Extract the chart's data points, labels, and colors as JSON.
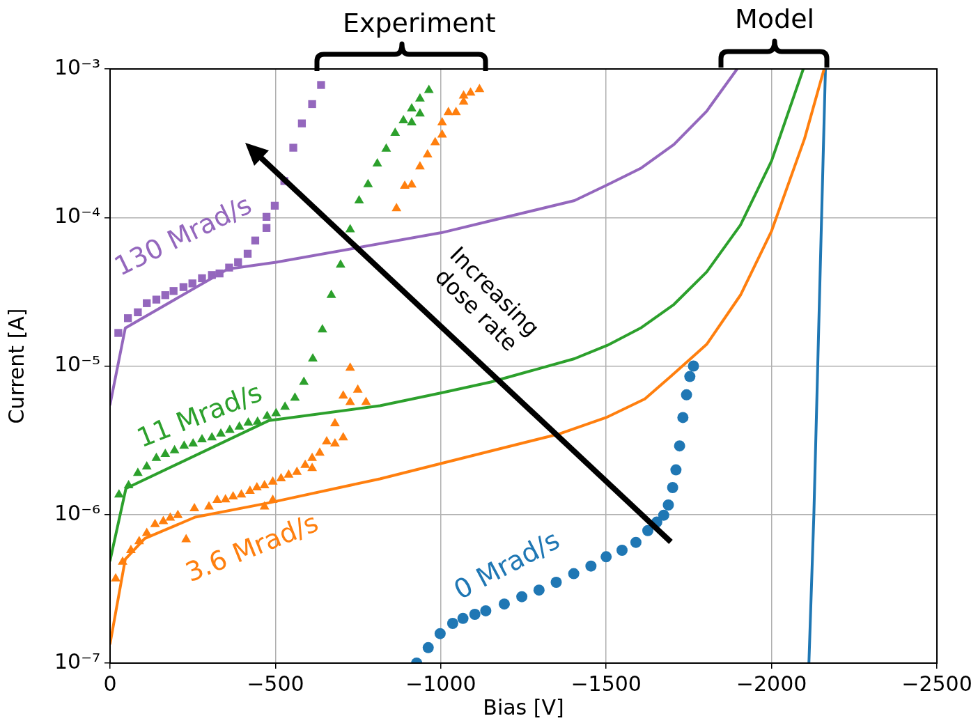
{
  "chart_data": {
    "type": "scatter",
    "xlabel": "Bias [V]",
    "ylabel": "Current [A]",
    "xlim": [
      0,
      -2500
    ],
    "xticks": [
      0,
      {
        "value": -500,
        "label": "−500"
      },
      {
        "value": -1000,
        "label": "−1000"
      },
      {
        "value": -1500,
        "label": "−1500"
      },
      {
        "value": -2000,
        "label": "−2000"
      },
      {
        "value": -2500,
        "label": "−2500"
      }
    ],
    "ylim": [
      1e-07,
      0.001
    ],
    "yticks": [
      {
        "value": 1e-07,
        "label": "10⁻⁷"
      },
      {
        "value": 1e-06,
        "label": "10⁻⁶"
      },
      {
        "value": 1e-05,
        "label": "10⁻⁵"
      },
      {
        "value": 0.0001,
        "label": "10⁻⁴"
      },
      {
        "value": 0.001,
        "label": "10⁻³"
      }
    ],
    "log": "y",
    "grid": true,
    "annotations": [
      "Experiment",
      "Model",
      "Increasing dose rate"
    ],
    "series": [
      {
        "type": "line",
        "color": "#9467bd",
        "x": [
          0,
          -46,
          -356,
          -502,
          -1002,
          -1151,
          -1404,
          -1504,
          -1604,
          -1705,
          -1804,
          -1896
        ],
        "values": [
          5.5e-06,
          1.8e-05,
          4.5e-05,
          5e-05,
          7.9e-05,
          9.5e-05,
          0.00013,
          0.000166,
          0.000214,
          0.00031,
          0.00052,
          0.001
        ]
      },
      {
        "type": "line",
        "color": "#2ca02c",
        "x": [
          0,
          -48,
          -481,
          -816,
          -1002,
          -1151,
          -1404,
          -1504,
          -1604,
          -1705,
          -1804,
          -1906,
          -2000,
          -2096
        ],
        "values": [
          4.9e-07,
          1.5e-06,
          4.3e-06,
          5.4e-06,
          6.6e-06,
          7.8e-06,
          1.12e-05,
          1.38e-05,
          1.8e-05,
          2.6e-05,
          4.3e-05,
          8.9e-05,
          0.00024,
          0.001
        ]
      },
      {
        "type": "line",
        "color": "#ff7f0e",
        "x": [
          0,
          -46,
          -105,
          -257,
          -481,
          -816,
          -998,
          -1360,
          -1500,
          -1617,
          -1695,
          -1804,
          -1906,
          -2000,
          -2100,
          -2159
        ],
        "values": [
          1.35e-07,
          5e-07,
          6.9e-07,
          9.6e-07,
          1.2e-06,
          1.74e-06,
          2.2e-06,
          3.5e-06,
          4.5e-06,
          6e-06,
          8.5e-06,
          1.4e-05,
          3e-05,
          8.1e-05,
          0.00034,
          0.001
        ]
      },
      {
        "type": "line",
        "color": "#1f77b4",
        "x": [
          -2113,
          -2128,
          -2163
        ],
        "values": [
          1e-07,
          1e-06,
          0.001
        ]
      },
      {
        "name": "130 Mrad/s",
        "color": "#9467bd",
        "marker": "square",
        "x": [
          -25,
          -54,
          -84,
          -111,
          -140,
          -167,
          -192,
          -222,
          -249,
          -278,
          -308,
          -331,
          -360,
          -387,
          -416,
          -439,
          -473,
          -473,
          -498,
          -527,
          -554,
          -580,
          -611,
          -638
        ],
        "values": [
          1.67e-05,
          2.1e-05,
          2.3e-05,
          2.65e-05,
          2.8e-05,
          3e-05,
          3.2e-05,
          3.4e-05,
          3.6e-05,
          3.9e-05,
          4.1e-05,
          4.2e-05,
          4.6e-05,
          5e-05,
          5.7e-05,
          7e-05,
          8.5e-05,
          0.000101,
          0.00012,
          0.000176,
          0.000295,
          0.00043,
          0.00058,
          0.00078
        ]
      },
      {
        "name": "11 Mrad/s",
        "color": "#2ca02c",
        "marker": "triangle",
        "x": [
          -27,
          -56,
          -84,
          -111,
          -140,
          -167,
          -195,
          -224,
          -251,
          -278,
          -308,
          -335,
          -362,
          -391,
          -418,
          -446,
          -475,
          -502,
          -529,
          -559,
          -586,
          -613,
          -642,
          -669,
          -697,
          -726,
          -753,
          -780,
          -808,
          -835,
          -862,
          -887,
          -912,
          -912,
          -937,
          -937,
          -964
        ],
        "values": [
          1.36e-06,
          1.57e-06,
          1.9e-06,
          2.1e-06,
          2.4e-06,
          2.55e-06,
          2.7e-06,
          2.9e-06,
          3e-06,
          3.2e-06,
          3.3e-06,
          3.5e-06,
          3.7e-06,
          3.9e-06,
          4.15e-06,
          4.2e-06,
          4.6e-06,
          4.8e-06,
          5.3e-06,
          6.1e-06,
          7.8e-06,
          1.12e-05,
          1.76e-05,
          3e-05,
          4.8e-05,
          8.3e-05,
          0.00013,
          0.000167,
          0.00023,
          0.00029,
          0.00037,
          0.00045,
          0.000435,
          0.00054,
          0.0005,
          0.00063,
          0.00072
        ]
      },
      {
        "name": "3.6 Mrad/s",
        "color": "#ff7f0e",
        "marker": "triangle",
        "x": [
          -17,
          -38,
          -63,
          -88,
          -111,
          -136,
          -161,
          -182,
          -205,
          -230,
          -255,
          -299,
          -324,
          -349,
          -372,
          -397,
          -423,
          -444,
          -467,
          -492,
          -467,
          -492,
          -517,
          -540,
          -565,
          -590,
          -611,
          -611,
          -634,
          -655,
          -680,
          -705,
          -680,
          -774,
          -726,
          -705,
          -749,
          -726,
          -866,
          -891,
          -912,
          -937,
          -960,
          -983,
          -1004,
          -1004,
          -1023,
          -1046,
          -1069,
          -1069,
          -1090,
          -1117
        ],
        "values": [
          3.7e-07,
          4.8e-07,
          5.75e-07,
          6.6e-07,
          7.5e-07,
          8.6e-07,
          9e-07,
          9.5e-07,
          9.9e-07,
          6.8e-07,
          1.1e-06,
          1.13e-06,
          1.25e-06,
          1.26e-06,
          1.32e-06,
          1.36e-06,
          1.44e-06,
          1.52e-06,
          1.13e-06,
          1.25e-06,
          1.57e-06,
          1.66e-06,
          1.75e-06,
          1.85e-06,
          1.93e-06,
          2.15e-06,
          2.05e-06,
          2.4e-06,
          2.6e-06,
          3.1e-06,
          3e-06,
          3.3e-06,
          4.1e-06,
          5.7e-06,
          5.7e-06,
          6.3e-06,
          6.9e-06,
          9.7e-06,
          0.000115,
          0.000163,
          0.000166,
          0.00022,
          0.000265,
          0.00032,
          0.00036,
          0.000435,
          0.00051,
          0.00051,
          0.0006,
          0.00066,
          0.00069,
          0.00073
        ]
      },
      {
        "name": "0 Mrad/s",
        "color": "#1f77b4",
        "marker": "circle",
        "x": [
          -927,
          -962,
          -998,
          -1036,
          -1067,
          -1103,
          -1136,
          -1192,
          -1245,
          -1297,
          -1349,
          -1402,
          -1454,
          -1500,
          -1548,
          -1590,
          -1626,
          -1653,
          -1674,
          -1688,
          -1701,
          -1711,
          -1722,
          -1732,
          -1743,
          -1753,
          -1764
        ],
        "values": [
          1e-07,
          1.27e-07,
          1.58e-07,
          1.85e-07,
          2e-07,
          2.13e-07,
          2.25e-07,
          2.5e-07,
          2.8e-07,
          3.1e-07,
          3.5e-07,
          4e-07,
          4.5e-07,
          5.2e-07,
          5.75e-07,
          6.5e-07,
          7.8e-07,
          8.9e-07,
          9.9e-07,
          1.16e-06,
          1.52e-06,
          2e-06,
          2.9e-06,
          4.5e-06,
          6.4e-06,
          8.5e-06,
          1e-05
        ]
      }
    ]
  }
}
